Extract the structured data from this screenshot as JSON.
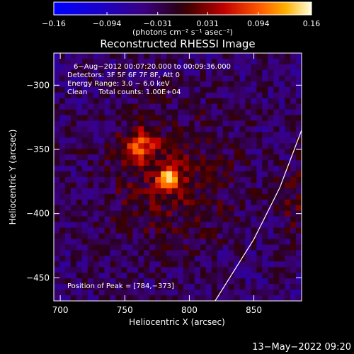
{
  "chart_data": {
    "type": "heatmap",
    "title": "Reconstructed RHESSI Image",
    "xlabel": "Heliocentric X (arcsec)",
    "ylabel": "Heliocentric Y (arcsec)",
    "xlim": [
      695,
      887
    ],
    "ylim": [
      -468,
      -275
    ],
    "x_ticks": [
      700,
      750,
      800,
      850
    ],
    "y_ticks": [
      -300,
      -350,
      -400,
      -450
    ],
    "x_tick_labels": [
      "700",
      "750",
      "800",
      "850"
    ],
    "y_tick_labels": [
      "−300",
      "−350",
      "−400",
      "−450"
    ],
    "colorbar": {
      "range": [
        -0.16,
        0.16
      ],
      "ticks": [
        -0.16,
        -0.094,
        -0.031,
        0.031,
        0.094,
        0.16
      ],
      "tick_labels": [
        "−0.16",
        "−0.094",
        "−0.031",
        "0.031",
        "0.094",
        "0.16"
      ],
      "unit_label": "(photons cm⁻² s⁻¹ asec⁻²)"
    },
    "annotations": [
      "6−Aug−2012 00:07:20.000 to 00:09:36.000",
      "Detectors: 3F 5F 6F 7F 8F, Att 0",
      "Energy Range: 3.0 − 6.0 keV",
      "Clean     Total counts: 1.00E+04"
    ],
    "peak_label": "Position of Peak = [784,−373]",
    "peak": {
      "x": 784,
      "y": -373,
      "value": 0.16
    },
    "secondary_source": {
      "x": 762,
      "y": -347,
      "value": 0.09
    },
    "limb_curve": [
      [
        820,
        -468
      ],
      [
        850,
        -420
      ],
      [
        870,
        -380
      ],
      [
        887,
        -335
      ]
    ],
    "grid": false
  },
  "footer": {
    "timestamp": "13−May−2022 09:20"
  }
}
